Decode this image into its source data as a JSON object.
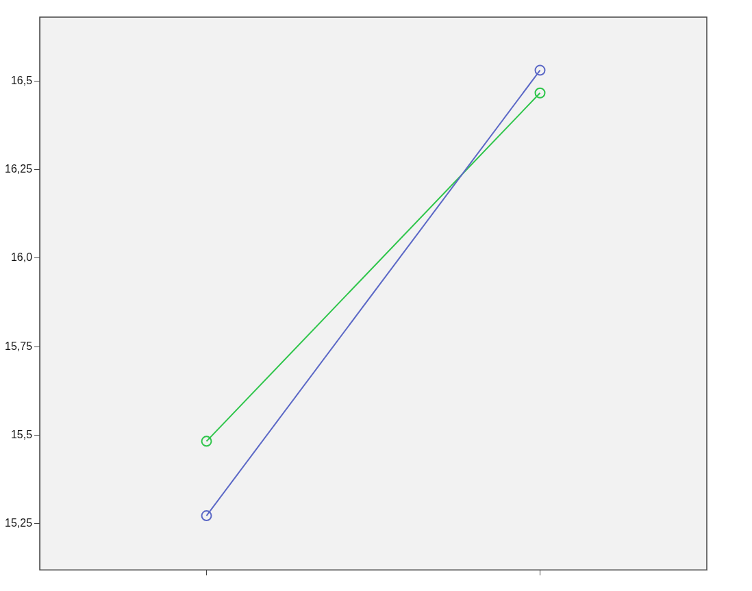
{
  "chart_data": {
    "type": "line",
    "categories": [
      null,
      null
    ],
    "series": [
      {
        "color": "#5b68c6",
        "values": [
          15.273,
          16.53
        ]
      },
      {
        "color": "#2ec54a",
        "values": [
          15.483,
          16.466
        ]
      }
    ],
    "ylim": [
      15.12,
      16.68
    ],
    "yticks": [
      {
        "value": 15.25,
        "label": "15,25"
      },
      {
        "value": 15.5,
        "label": "15,5"
      },
      {
        "value": 15.75,
        "label": "15,75"
      },
      {
        "value": 16.0,
        "label": "16,0"
      },
      {
        "value": 16.25,
        "label": "16,25"
      },
      {
        "value": 16.5,
        "label": "16,5"
      }
    ],
    "marker": "circle",
    "line_style": "solid",
    "grid": false,
    "legend": false
  }
}
